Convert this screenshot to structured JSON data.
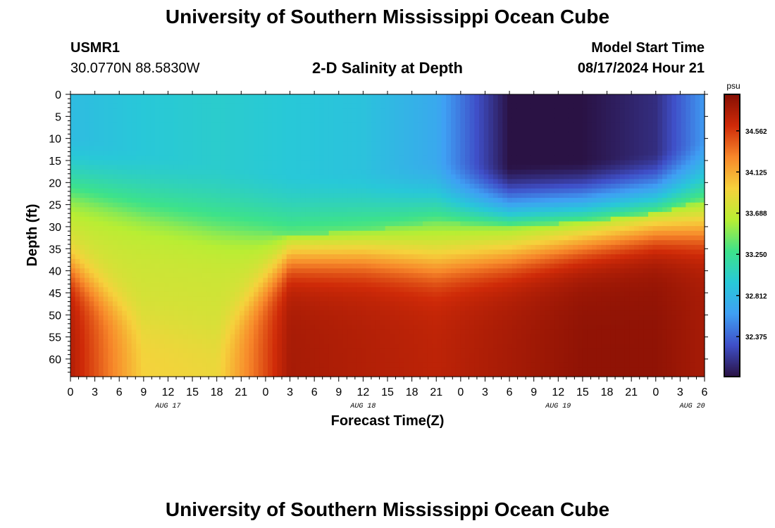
{
  "header": {
    "title": "University of Southern Mississippi Ocean Cube",
    "station_id": "USMR1",
    "coordinates": "30.0770N  88.5830W",
    "subtitle": "2-D Salinity at Depth",
    "start_time_label": "Model Start Time",
    "start_time_value": "08/17/2024 Hour 21"
  },
  "footer": {
    "title": "University of Southern Mississippi Ocean Cube"
  },
  "chart_data": {
    "type": "heatmap",
    "title": "2-D Salinity at Depth",
    "xlabel": "Forecast Time(Z)",
    "ylabel": "Depth (ft)",
    "x_tick_labels": [
      "0",
      "3",
      "6",
      "9",
      "12",
      "15",
      "18",
      "21",
      "0",
      "3",
      "6",
      "9",
      "12",
      "15",
      "18",
      "21",
      "0",
      "3",
      "6",
      "9",
      "12",
      "15",
      "18",
      "21",
      "0",
      "3",
      "6"
    ],
    "date_labels": [
      {
        "label": "AUG 17",
        "tick_index": 4
      },
      {
        "label": "AUG 18",
        "tick_index": 12
      },
      {
        "label": "AUG 19",
        "tick_index": 20
      },
      {
        "label": "AUG 20",
        "tick_index": 25.5
      }
    ],
    "y_ticks": [
      0,
      5,
      10,
      15,
      20,
      25,
      30,
      35,
      40,
      45,
      50,
      55,
      60
    ],
    "ylim": [
      0,
      64
    ],
    "y_inverted": true,
    "colorbar": {
      "unit_label": "psu",
      "ticks": [
        32.375,
        32.812,
        33.25,
        33.688,
        34.125,
        34.562
      ],
      "tick_labels": [
        "32.375",
        "32.812",
        "33.250",
        "33.688",
        "34.125",
        "34.562"
      ],
      "range": [
        31.95,
        34.95
      ],
      "colors": [
        "#2a1244",
        "#3f4fc8",
        "#3f9ff4",
        "#28c8d8",
        "#3de28a",
        "#b8ee33",
        "#f6d23c",
        "#f7872a",
        "#cf2a08",
        "#850f04"
      ]
    },
    "profile_nodes": {
      "time_index": [
        0,
        3,
        6,
        9,
        12,
        15,
        18,
        21,
        24,
        26
      ],
      "halocline_depth_ft": [
        23,
        27,
        30,
        32,
        31,
        29,
        30,
        29,
        27,
        24
      ],
      "surface_salinity": [
        32.85,
        32.95,
        33.0,
        32.95,
        32.9,
        32.7,
        31.95,
        31.95,
        32.1,
        32.6
      ],
      "bottom_salinity": [
        34.75,
        33.95,
        33.9,
        34.8,
        34.75,
        34.7,
        34.8,
        34.9,
        34.9,
        34.8
      ],
      "warm_layer_top_ft": [
        39,
        52,
        55,
        37,
        37,
        39,
        37,
        34,
        31,
        31
      ]
    }
  }
}
